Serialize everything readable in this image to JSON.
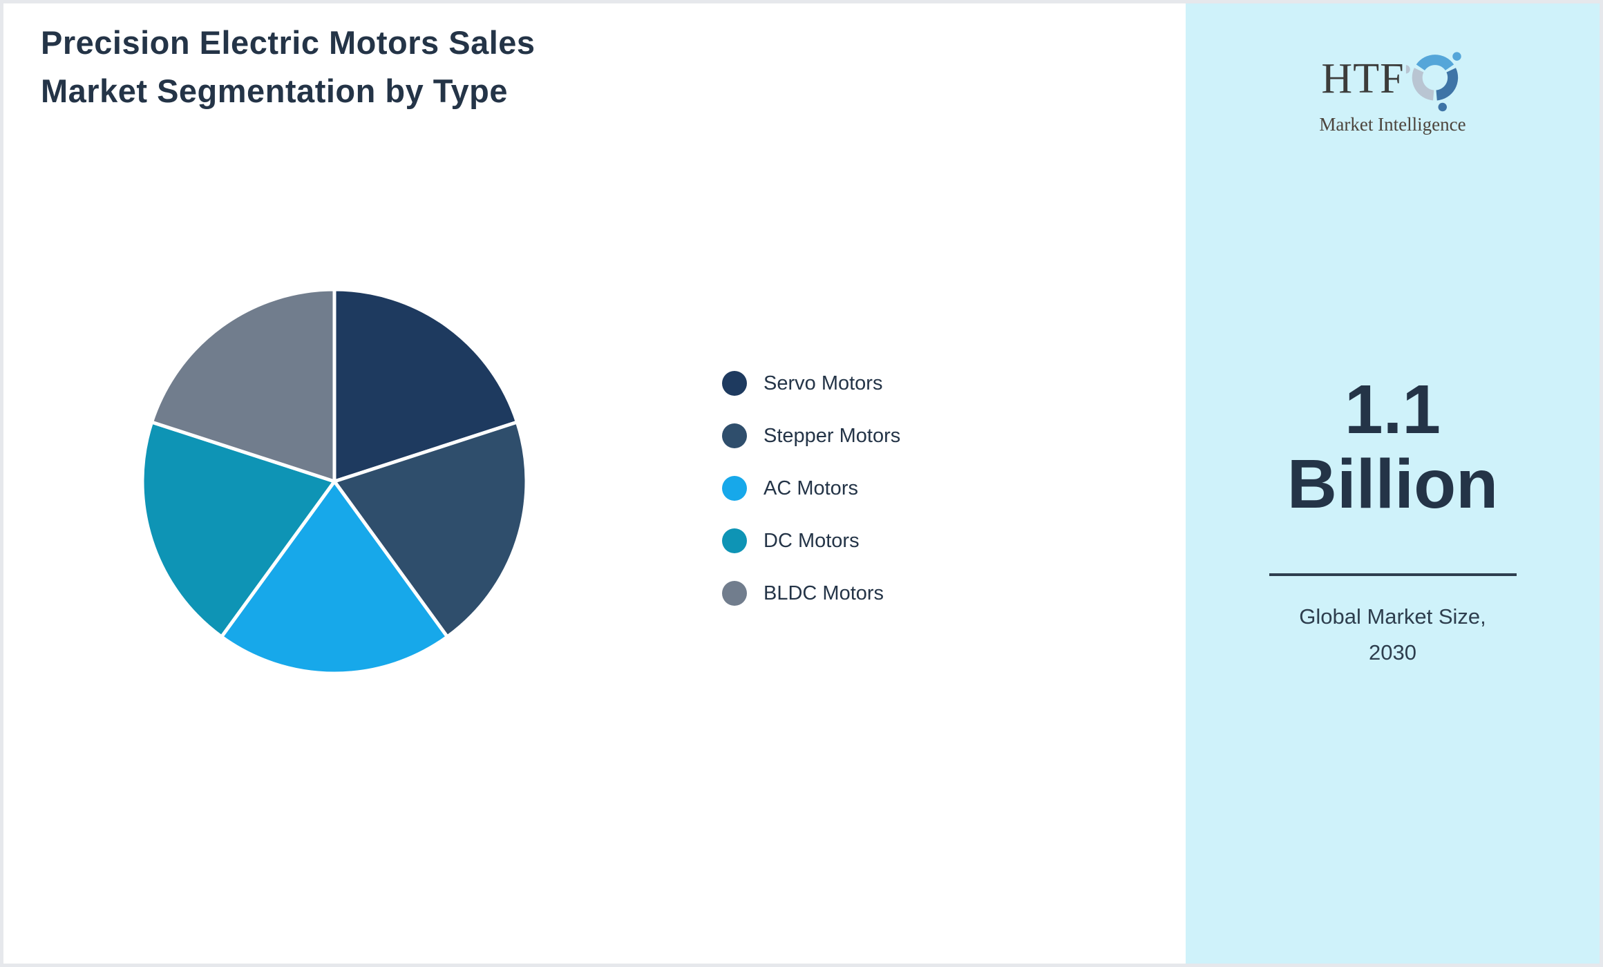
{
  "title": {
    "line1": "Precision Electric Motors Sales",
    "line2": "Market Segmentation by Type"
  },
  "chart_data": {
    "type": "pie",
    "title": "Precision Electric Motors Sales Market Segmentation by Type",
    "categories": [
      "Servo Motors",
      "Stepper Motors",
      "AC Motors",
      "DC Motors",
      "BLDC Motors"
    ],
    "values": [
      20,
      20,
      20,
      20,
      20
    ],
    "unit": "percent share",
    "colors": [
      "#1e3a5f",
      "#2f4e6c",
      "#17a8ea",
      "#0e94b5",
      "#717d8d"
    ],
    "start_angle_deg": 0,
    "direction": "clockwise",
    "slice_gap_color": "#ffffff",
    "legend_position": "right",
    "data_labels": "none"
  },
  "sidebar": {
    "background_color": "#cff2fa",
    "logo": {
      "text": "HTF",
      "subtext": "Market Intelligence",
      "swirl_colors": [
        "#55a6d9",
        "#3e74a6",
        "#b9c5d2"
      ]
    },
    "stat": {
      "value_line1": "1.1",
      "value_line2": "Billion",
      "label_line1": "Global Market Size,",
      "label_line2": "2030"
    }
  },
  "theme": {
    "text_color": "#243447",
    "background": "#ffffff",
    "frame_border": "#e6e8ec",
    "divider_color": "#2e3e4e"
  }
}
